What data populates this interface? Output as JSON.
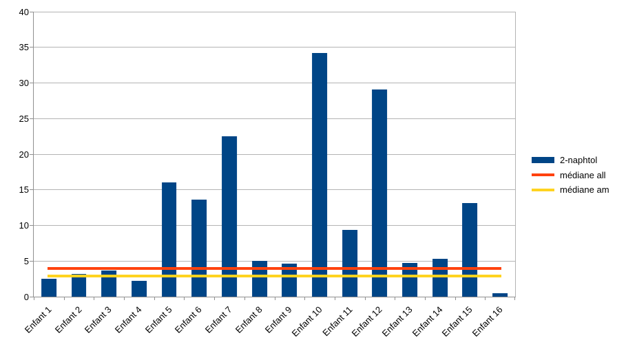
{
  "chart_data": {
    "type": "bar",
    "title": "",
    "xlabel": "",
    "ylabel": "",
    "categories": [
      "Enfant 1",
      "Enfant 2",
      "Enfant 3",
      "Enfant 4",
      "Enfant 5",
      "Enfant 6",
      "Enfant 7",
      "Enfant 8",
      "Enfant 9",
      "Enfant 10",
      "Enfant 11",
      "Enfant 12",
      "Enfant 13",
      "Enfant 14",
      "Enfant 15",
      "Enfant 16"
    ],
    "series": [
      {
        "name": "2-naphtol",
        "type": "bar",
        "color": "#004586",
        "values": [
          2.5,
          3.2,
          3.7,
          2.2,
          16.0,
          13.6,
          22.5,
          5.0,
          4.6,
          34.2,
          9.4,
          29.1,
          4.7,
          5.3,
          13.1,
          0.45
        ]
      },
      {
        "name": "médiane all",
        "type": "line",
        "color": "#FF420E",
        "value": 4.0
      },
      {
        "name": "médiane am",
        "type": "line",
        "color": "#FFD320",
        "value": 2.9
      }
    ],
    "ylim": [
      0,
      40
    ],
    "yticks": [
      0,
      5,
      10,
      15,
      20,
      25,
      30,
      35,
      40
    ],
    "grid": "horizontal-only",
    "gridline_color": "#b3b3b3",
    "axis_color": "#8f8f8f",
    "text_color": "#000000",
    "legend_position": "right",
    "x_label_rotation_deg": 45
  },
  "legend": {
    "items": [
      {
        "label": "2-naphtol",
        "swatch": "bar-swatch",
        "color": "#004586"
      },
      {
        "label": "médiane all",
        "swatch": "line-swatch",
        "color": "#FF420E"
      },
      {
        "label": "médiane am",
        "swatch": "line-swatch",
        "color": "#FFD320"
      }
    ]
  }
}
